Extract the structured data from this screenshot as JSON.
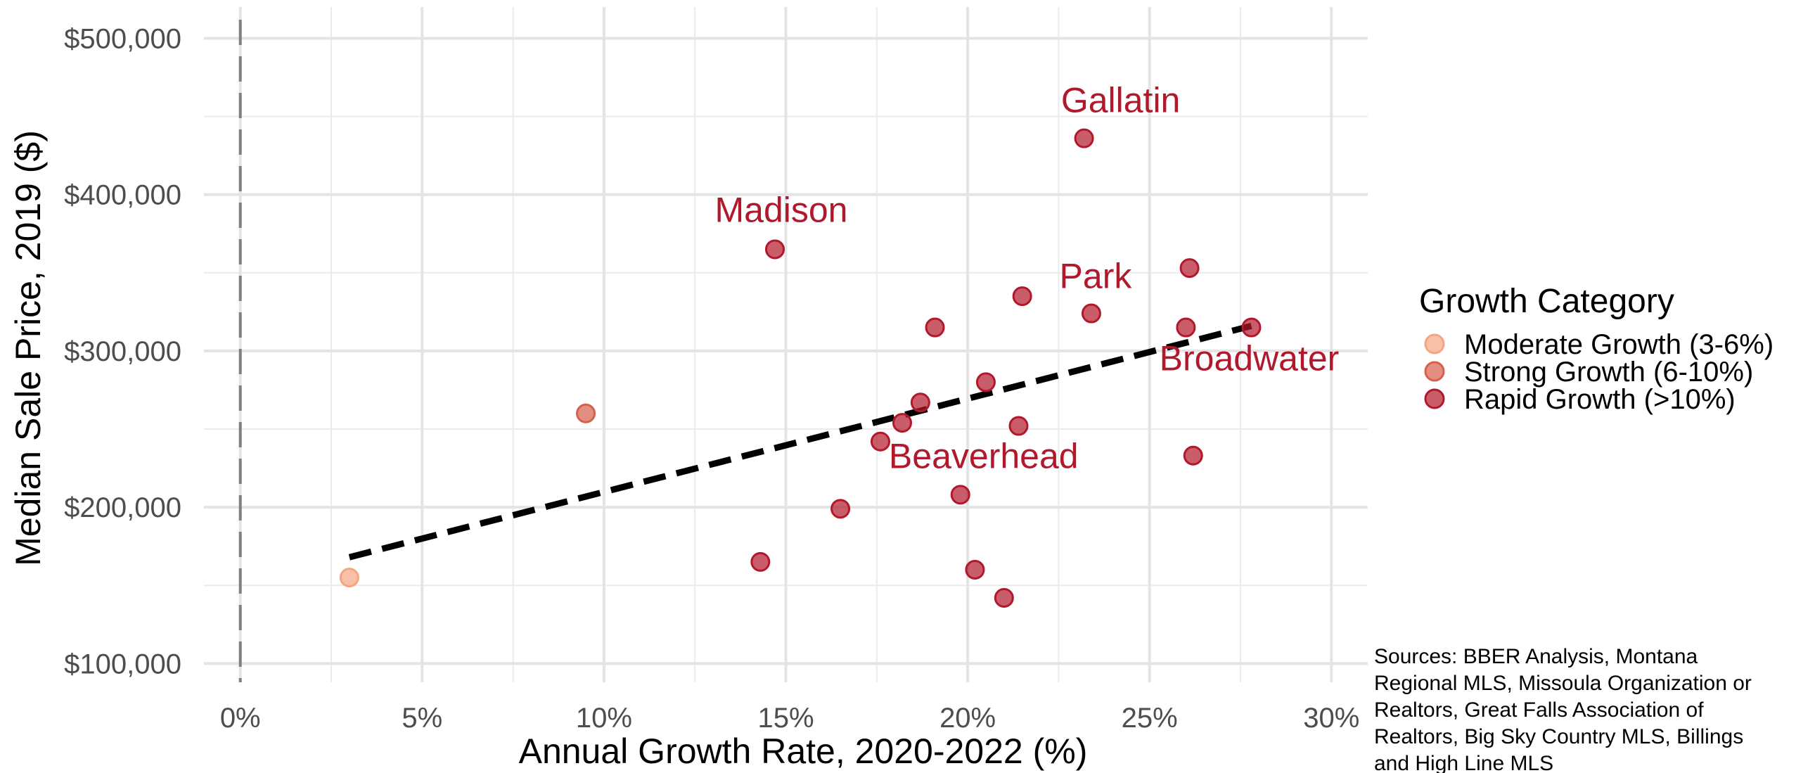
{
  "chart_data": {
    "type": "scatter",
    "xlabel": "Annual Growth Rate, 2020-2022 (%)",
    "ylabel": "Median Sale Price, 2019 ($)",
    "xlim": [
      -0.01,
      0.31
    ],
    "ylim": [
      88000,
      520000
    ],
    "x_ticks": [
      0,
      0.05,
      0.1,
      0.15,
      0.2,
      0.25,
      0.3
    ],
    "x_tick_labels": [
      "0%",
      "5%",
      "10%",
      "15%",
      "20%",
      "25%",
      "30%"
    ],
    "y_ticks": [
      100000,
      200000,
      300000,
      400000,
      500000
    ],
    "y_tick_labels": [
      "$100,000",
      "$200,000",
      "$300,000",
      "$400,000",
      "$500,000"
    ],
    "grid": true,
    "vline_x": 0,
    "legend": {
      "title": "Growth Category",
      "placement": "right",
      "entries": [
        {
          "label": "Moderate Growth (3-6%)",
          "color": "#F4A582"
        },
        {
          "label": "Strong Growth (6-10%)",
          "color": "#D6604D"
        },
        {
          "label": "Rapid Growth (>10%)",
          "color": "#B2182B"
        }
      ]
    },
    "trendline": {
      "x": [
        0.03,
        0.278
      ],
      "y": [
        168000,
        316000
      ],
      "style": "dashed",
      "color": "#000000"
    },
    "points": [
      {
        "x": 0.03,
        "y": 155000,
        "category": 0
      },
      {
        "x": 0.095,
        "y": 260000,
        "category": 1
      },
      {
        "x": 0.143,
        "y": 165000,
        "category": 2
      },
      {
        "x": 0.147,
        "y": 365000,
        "category": 2,
        "label": "Madison"
      },
      {
        "x": 0.165,
        "y": 199000,
        "category": 2
      },
      {
        "x": 0.176,
        "y": 242000,
        "category": 2
      },
      {
        "x": 0.182,
        "y": 254000,
        "category": 2
      },
      {
        "x": 0.187,
        "y": 267000,
        "category": 2
      },
      {
        "x": 0.191,
        "y": 315000,
        "category": 2
      },
      {
        "x": 0.198,
        "y": 208000,
        "category": 2,
        "label": "Beaverhead"
      },
      {
        "x": 0.202,
        "y": 160000,
        "category": 2
      },
      {
        "x": 0.205,
        "y": 280000,
        "category": 2
      },
      {
        "x": 0.21,
        "y": 142000,
        "category": 2
      },
      {
        "x": 0.214,
        "y": 252000,
        "category": 2
      },
      {
        "x": 0.215,
        "y": 335000,
        "category": 2
      },
      {
        "x": 0.232,
        "y": 436000,
        "category": 2,
        "label": "Gallatin"
      },
      {
        "x": 0.234,
        "y": 324000,
        "category": 2,
        "label": "Park"
      },
      {
        "x": 0.26,
        "y": 315000,
        "category": 2
      },
      {
        "x": 0.261,
        "y": 353000,
        "category": 2
      },
      {
        "x": 0.262,
        "y": 233000,
        "category": 2
      },
      {
        "x": 0.278,
        "y": 315000,
        "category": 2,
        "label": "Broadwater"
      }
    ],
    "annotation_color": "#B2182B",
    "source_note": [
      "Sources: BBER Analysis, Montana",
      "Regional MLS, Missoula Organization or",
      "Realtors, Great Falls Association of",
      "Realtors, Big Sky Country MLS, Billings",
      "and High Line MLS"
    ]
  }
}
